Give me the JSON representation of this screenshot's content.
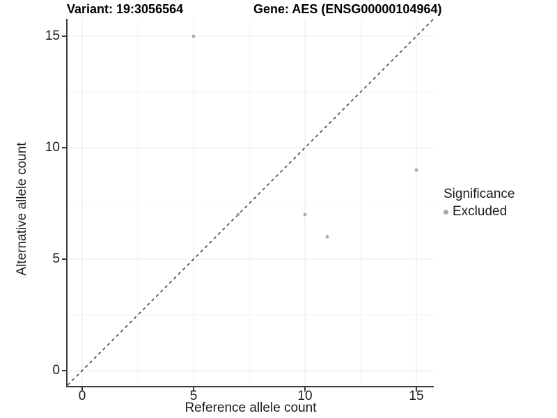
{
  "figure": {
    "title_left": "Variant: 19:3056564",
    "title_right": "Gene: AES (ENSG00000104964)"
  },
  "chart_data": {
    "type": "scatter",
    "title_left": "Variant: 19:3056564",
    "title_right": "Gene: AES (ENSG00000104964)",
    "xlabel": "Reference allele count",
    "ylabel": "Alternative allele count",
    "xlim": [
      -0.656,
      15.781
    ],
    "ylim": [
      -0.688,
      15.781
    ],
    "x_major_ticks": [
      0,
      5,
      10,
      15
    ],
    "y_major_ticks": [
      0,
      5,
      10,
      15
    ],
    "x_minor_gridlines": [
      2.5,
      7.5,
      12.5
    ],
    "y_minor_gridlines": [
      2.5,
      7.5,
      12.5
    ],
    "grid": "major and minor, light grey on white",
    "reference_line": {
      "slope": 1,
      "intercept": 0,
      "style": "dashed",
      "color": "#1a1a1a"
    },
    "series": [
      {
        "name": "Excluded",
        "color": "#a8a8a8",
        "points": [
          {
            "x": 5,
            "y": 15
          },
          {
            "x": 7,
            "y": 7
          },
          {
            "x": 10,
            "y": 7
          },
          {
            "x": 11,
            "y": 6
          },
          {
            "x": 15,
            "y": 9
          }
        ]
      }
    ],
    "legend": {
      "title": "Significance",
      "position": "right",
      "items": [
        {
          "label": "Excluded",
          "color": "#a8a8a8"
        }
      ]
    },
    "colors": {
      "grid_major": "#e8e8e8",
      "grid_minor": "#f3f3f3",
      "axis_line": "#3c3c3c",
      "text": "#1a1a1a",
      "point": "#a8a8a8"
    }
  }
}
